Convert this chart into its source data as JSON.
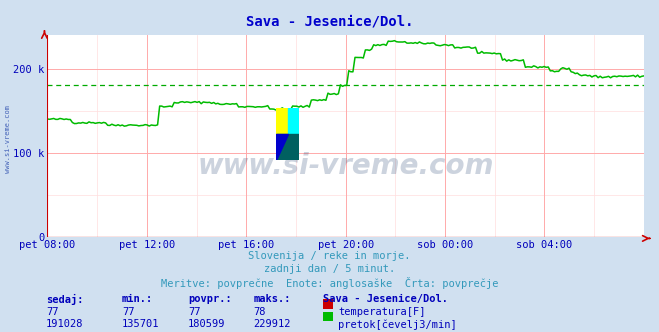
{
  "title": "Sava - Jesenice/Dol.",
  "title_color": "#0000cc",
  "bg_color": "#d0e0f0",
  "plot_bg_color": "#ffffff",
  "grid_color_major": "#ffaaaa",
  "grid_color_minor": "#ffdddd",
  "x_labels": [
    "pet 08:00",
    "pet 12:00",
    "pet 16:00",
    "pet 20:00",
    "sob 00:00",
    "sob 04:00"
  ],
  "x_ticks_norm": [
    0.0,
    0.1667,
    0.3333,
    0.5,
    0.6667,
    0.8333
  ],
  "y_ticks": [
    0,
    100000,
    200000
  ],
  "y_labels": [
    "0",
    "100 k",
    "200 k"
  ],
  "ylim": [
    0,
    240000
  ],
  "avg_line_value": 180599,
  "avg_line_color": "#00aa00",
  "flow_color": "#00bb00",
  "temp_color": "#cc0000",
  "watermark": "www.si-vreme.com",
  "watermark_color": "#1a3a6a",
  "watermark_alpha": 0.22,
  "subtitle1": "Slovenija / reke in morje.",
  "subtitle2": "zadnji dan / 5 minut.",
  "subtitle3": "Meritve: povprečne  Enote: anglosaške  Črta: povprečje",
  "legend_title": "Sava - Jesenice/Dol.",
  "legend_headers": [
    "sedaj:",
    "min.:",
    "povpr.:",
    "maks.:"
  ],
  "temp_values": [
    77,
    77,
    77,
    78
  ],
  "flow_values": [
    191028,
    135701,
    180599,
    229912
  ],
  "temp_label": "temperatura[F]",
  "flow_label": "pretok[čevelj3/min]",
  "sidebar_text": "www.si-vreme.com",
  "sidebar_color": "#2244aa"
}
